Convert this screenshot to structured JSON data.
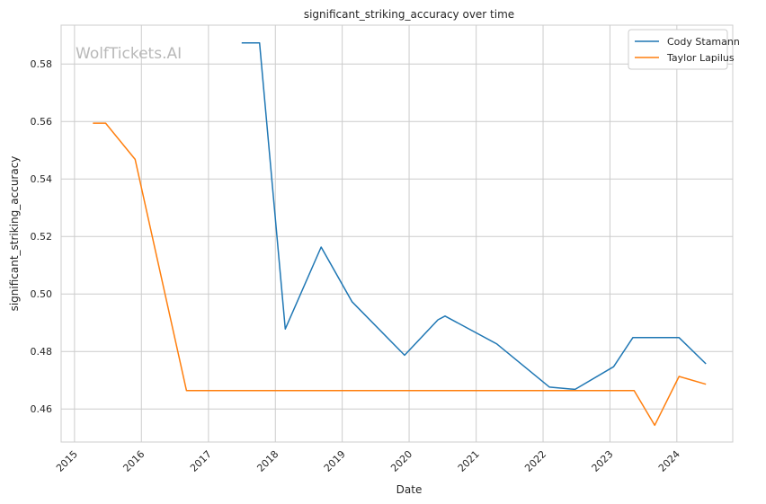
{
  "chart_data": {
    "type": "line",
    "title": "significant_striking_accuracy over time",
    "xlabel": "Date",
    "ylabel": "significant_striking_accuracy",
    "watermark": "WolfTickets.AI",
    "x_ticks": [
      "2015",
      "2016",
      "2017",
      "2018",
      "2019",
      "2020",
      "2021",
      "2022",
      "2023",
      "2024"
    ],
    "y_ticks": [
      "0.46",
      "0.48",
      "0.50",
      "0.52",
      "0.54",
      "0.56",
      "0.58"
    ],
    "xlim": [
      "2014-10-20",
      "2024-11-01"
    ],
    "ylim": [
      0.4485,
      0.5935
    ],
    "grid": true,
    "legend_position": "top-right",
    "series": [
      {
        "name": "Cody Stamann",
        "color": "#1f77b4",
        "points": [
          [
            "2017-07-01",
            0.5873
          ],
          [
            "2017-10-07",
            0.5873
          ],
          [
            "2018-02-24",
            0.4878
          ],
          [
            "2018-09-08",
            0.5163
          ],
          [
            "2019-02-23",
            0.4973
          ],
          [
            "2019-12-07",
            0.4787
          ],
          [
            "2020-06-06",
            0.491
          ],
          [
            "2020-07-15",
            0.4923
          ],
          [
            "2021-04-24",
            0.4826
          ],
          [
            "2022-02-05",
            0.4676
          ],
          [
            "2022-06-25",
            0.4668
          ],
          [
            "2023-01-21",
            0.4747
          ],
          [
            "2023-05-06",
            0.4848
          ],
          [
            "2024-01-13",
            0.4848
          ],
          [
            "2024-06-08",
            0.4757
          ]
        ]
      },
      {
        "name": "Taylor Lapilus",
        "color": "#ff7f0e",
        "points": [
          [
            "2015-04-11",
            0.5594
          ],
          [
            "2015-06-20",
            0.5594
          ],
          [
            "2015-11-28",
            0.5468
          ],
          [
            "2016-09-03",
            0.4664
          ],
          [
            "2023-05-13",
            0.4664
          ],
          [
            "2023-09-02",
            0.4543
          ],
          [
            "2024-01-13",
            0.4713
          ],
          [
            "2024-06-08",
            0.4686
          ]
        ]
      }
    ]
  }
}
